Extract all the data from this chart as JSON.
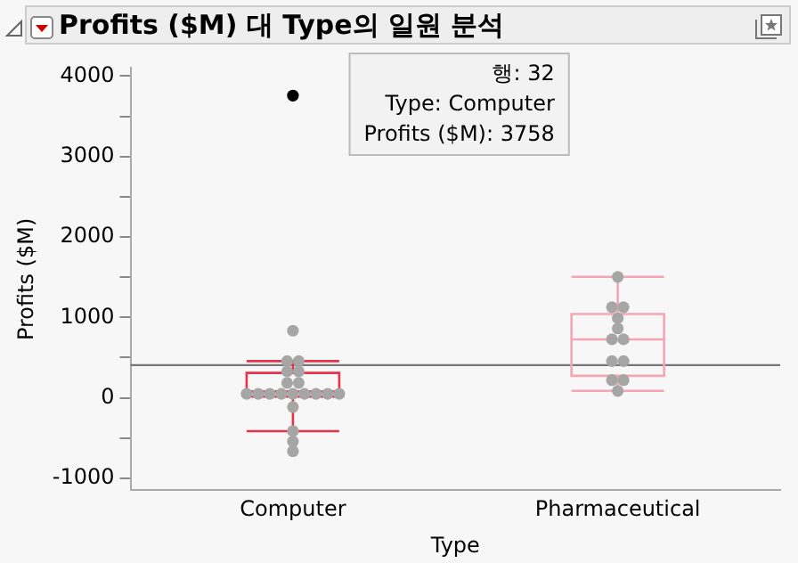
{
  "chart_data": {
    "type": "box",
    "title": "Profits ($M) 대 Type의 일원 분석",
    "xlabel": "Type",
    "ylabel": "Profits ($M)",
    "categories": [
      "Computer",
      "Pharmaceutical"
    ],
    "series": [
      {
        "colors": [
          "#e8314a",
          "#f4a6b4"
        ],
        "boxes": [
          {
            "low": -414,
            "q1": 14,
            "median": 78,
            "q3": 310,
            "high": 456
          },
          {
            "low": 86,
            "q1": 273,
            "median": 727,
            "q3": 1042,
            "high": 1504
          }
        ]
      },
      {
        "type": "scatter",
        "x": [
          "Computer",
          "Computer",
          "Computer",
          "Computer",
          "Computer",
          "Computer",
          "Computer",
          "Computer",
          "Computer",
          "Computer",
          "Computer",
          "Computer",
          "Computer",
          "Computer",
          "Computer",
          "Computer",
          "Computer",
          "Computer",
          "Computer",
          "Computer",
          "Computer",
          "Pharmaceutical",
          "Pharmaceutical",
          "Pharmaceutical",
          "Pharmaceutical",
          "Pharmaceutical",
          "Pharmaceutical",
          "Pharmaceutical",
          "Pharmaceutical",
          "Pharmaceutical",
          "Pharmaceutical",
          "Pharmaceutical",
          "Pharmaceutical"
        ],
        "values": [
          3758,
          834,
          456,
          456,
          328,
          328,
          185,
          185,
          50,
          50,
          50,
          50,
          50,
          50,
          50,
          50,
          50,
          -114,
          -414,
          -542,
          -664,
          1504,
          1127,
          1127,
          991,
          862,
          727,
          727,
          456,
          456,
          220,
          220,
          86
        ],
        "colors": [
          "#000000",
          "#a6a6a6",
          "#a6a6a6",
          "#a6a6a6",
          "#a6a6a6",
          "#a6a6a6",
          "#a6a6a6",
          "#a6a6a6",
          "#a6a6a6",
          "#a6a6a6",
          "#a6a6a6",
          "#a6a6a6",
          "#a6a6a6",
          "#a6a6a6",
          "#a6a6a6",
          "#a6a6a6",
          "#a6a6a6",
          "#a6a6a6",
          "#a6a6a6",
          "#a6a6a6",
          "#a6a6a6",
          "#a6a6a6",
          "#a6a6a6",
          "#a6a6a6",
          "#a6a6a6",
          "#a6a6a6",
          "#a6a6a6",
          "#a6a6a6",
          "#a6a6a6",
          "#a6a6a6",
          "#a6a6a6",
          "#a6a6a6",
          "#a6a6a6"
        ]
      }
    ],
    "ref_lines": [
      {
        "axis": "y",
        "value": 406,
        "color": "#777777"
      }
    ],
    "annotations": [
      "행: 32",
      "Type: Computer",
      "Profits ($M): 3758"
    ],
    "ylim": [
      -1150,
      4100
    ],
    "yticks": [
      -1000,
      {
        "value": -500,
        "label": null
      },
      0,
      {
        "value": 500,
        "label": null
      },
      1000,
      {
        "value": 1500,
        "label": null
      },
      2000,
      {
        "value": 2500,
        "label": null
      },
      3000,
      {
        "value": 3500,
        "label": null
      },
      4000
    ],
    "grid": false,
    "legend": false,
    "marker": "circle"
  }
}
